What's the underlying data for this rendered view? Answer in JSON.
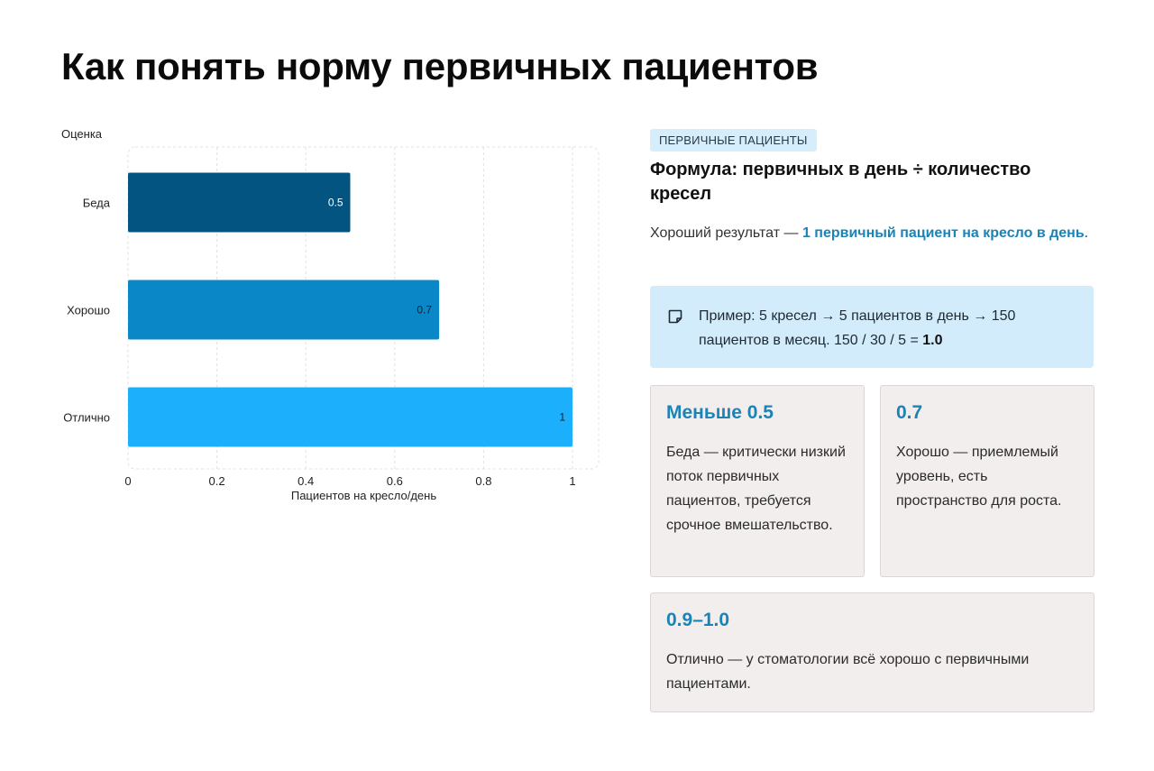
{
  "page": {
    "title": "Как понять норму первичных пациентов"
  },
  "chart_data": {
    "type": "bar",
    "orientation": "horizontal",
    "categories": [
      "Беда",
      "Хорошо",
      "Отлично"
    ],
    "values": [
      0.5,
      0.7,
      1
    ],
    "data_labels": [
      "0.5",
      "0.7",
      "1"
    ],
    "colors": [
      "#045482",
      "#0a87c6",
      "#1caffc"
    ],
    "label_colors": [
      "#ffffff",
      "#1a1a1a",
      "#1a1a1a"
    ],
    "xlabel": "Пациентов на кресло/день",
    "ylabel": "Оценка",
    "xlim": [
      0,
      1.05
    ],
    "xticks": [
      "0",
      "0.2",
      "0.4",
      "0.6",
      "0.8",
      "1"
    ],
    "xtick_values": [
      0,
      0.2,
      0.4,
      0.6,
      0.8,
      1
    ],
    "grid": true,
    "legend": "none"
  },
  "panel": {
    "tag": "ПЕРВИЧНЫЕ ПАЦИЕНТЫ",
    "formula": "Формула: первичных в день ÷ количество кресел",
    "result_prefix": "Хороший результат — ",
    "result_accent": "1 первичный пациент на кресло в день",
    "result_suffix": ".",
    "example_icon": "note-icon",
    "example_text": "Пример: 5 кресел → 5 пациентов в день → 150 пациентов в месяц. 150 / 30 / 5 = ",
    "example_bold": "1.0",
    "accent_color": "#1b83b6"
  },
  "cards": [
    {
      "title": "Меньше 0.5",
      "text": "Беда — критически низкий поток первичных пациентов, требуется срочное вмешательство."
    },
    {
      "title": "0.7",
      "text": "Хорошо — приемлемый уровень, есть пространство для роста."
    },
    {
      "title": "0.9–1.0",
      "text": "Отлично — у стоматологии всё хорошо с первичными пациентами."
    }
  ]
}
